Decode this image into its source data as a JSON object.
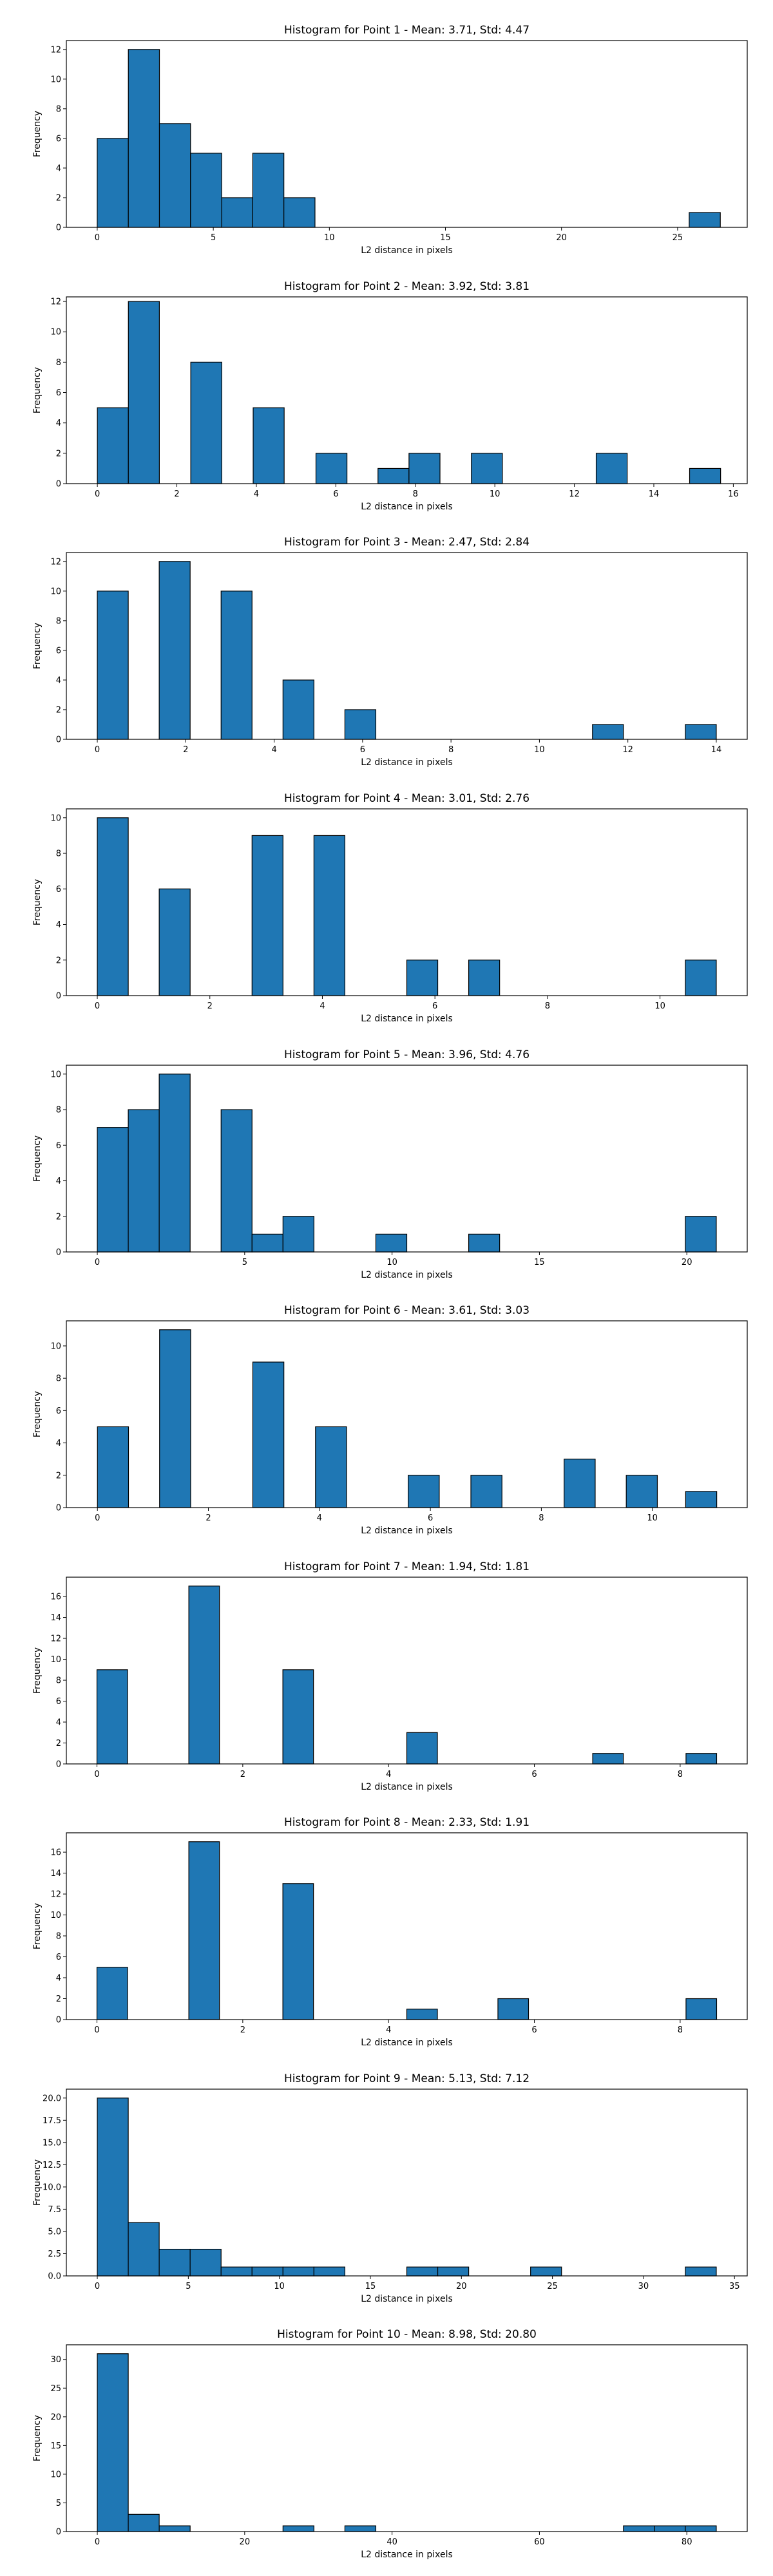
{
  "chart_data": [
    {
      "type": "bar",
      "title": "Histogram for Point 1 - Mean: 3.71, Std: 4.47",
      "xlabel": "L2 distance in pixels",
      "ylabel": "Frequency",
      "xlim": [
        -1.33,
        28.0
      ],
      "ylim": [
        0,
        12.6
      ],
      "xticks": [
        0,
        5,
        10,
        15,
        20,
        25
      ],
      "xtick_labels": [
        "0",
        "5",
        "10",
        "15",
        "20",
        "25"
      ],
      "yticks": [
        0,
        2,
        4,
        6,
        8,
        10,
        12
      ],
      "ytick_labels": [
        "0",
        "2",
        "4",
        "6",
        "8",
        "10",
        "12"
      ],
      "bin_width": 1.34,
      "bins": [
        {
          "x": 0,
          "count": 6
        },
        {
          "x": 1.34,
          "count": 12
        },
        {
          "x": 2.68,
          "count": 7
        },
        {
          "x": 4.02,
          "count": 5
        },
        {
          "x": 5.36,
          "count": 2
        },
        {
          "x": 6.7,
          "count": 5
        },
        {
          "x": 8.04,
          "count": 2
        },
        {
          "x": 25.5,
          "count": 1
        }
      ]
    },
    {
      "type": "bar",
      "title": "Histogram for Point 2 - Mean: 3.92, Std: 3.81",
      "xlabel": "L2 distance in pixels",
      "ylabel": "Frequency",
      "xlim": [
        -0.78,
        16.35
      ],
      "ylim": [
        0,
        12.3
      ],
      "xticks": [
        0,
        2,
        4,
        6,
        8,
        10,
        12,
        14,
        16
      ],
      "xtick_labels": [
        "0",
        "2",
        "4",
        "6",
        "8",
        "10",
        "12",
        "14",
        "16"
      ],
      "yticks": [
        0,
        2,
        4,
        6,
        8,
        10,
        12
      ],
      "ytick_labels": [
        "0",
        "2",
        "4",
        "6",
        "8",
        "10",
        "12"
      ],
      "bin_width": 0.78,
      "bins": [
        {
          "x": 0,
          "count": 5
        },
        {
          "x": 0.78,
          "count": 12
        },
        {
          "x": 2.35,
          "count": 8
        },
        {
          "x": 3.92,
          "count": 5
        },
        {
          "x": 5.5,
          "count": 2
        },
        {
          "x": 7.06,
          "count": 1
        },
        {
          "x": 7.84,
          "count": 2
        },
        {
          "x": 9.41,
          "count": 2
        },
        {
          "x": 12.55,
          "count": 2
        },
        {
          "x": 14.9,
          "count": 1
        }
      ]
    },
    {
      "type": "bar",
      "title": "Histogram for Point 3 - Mean: 2.47, Std: 2.84",
      "xlabel": "L2 distance in pixels",
      "ylabel": "Frequency",
      "xlim": [
        -0.7,
        14.7
      ],
      "ylim": [
        0,
        12.6
      ],
      "xticks": [
        0,
        2,
        4,
        6,
        8,
        10,
        12,
        14
      ],
      "xtick_labels": [
        "0",
        "2",
        "4",
        "6",
        "8",
        "10",
        "12",
        "14"
      ],
      "yticks": [
        0,
        2,
        4,
        6,
        8,
        10,
        12
      ],
      "ytick_labels": [
        "0",
        "2",
        "4",
        "6",
        "8",
        "10",
        "12"
      ],
      "bin_width": 0.7,
      "bins": [
        {
          "x": 0,
          "count": 10
        },
        {
          "x": 1.4,
          "count": 12
        },
        {
          "x": 2.8,
          "count": 10
        },
        {
          "x": 4.2,
          "count": 4
        },
        {
          "x": 5.6,
          "count": 2
        },
        {
          "x": 11.2,
          "count": 1
        },
        {
          "x": 13.3,
          "count": 1
        }
      ]
    },
    {
      "type": "bar",
      "title": "Histogram for Point 4 - Mean: 3.01, Std: 2.76",
      "xlabel": "L2 distance in pixels",
      "ylabel": "Frequency",
      "xlim": [
        -0.55,
        11.55
      ],
      "ylim": [
        0,
        10.5
      ],
      "xticks": [
        0,
        2,
        4,
        6,
        8,
        10
      ],
      "xtick_labels": [
        "0",
        "2",
        "4",
        "6",
        "8",
        "10"
      ],
      "yticks": [
        0,
        2,
        4,
        6,
        8,
        10
      ],
      "ytick_labels": [
        "0",
        "2",
        "4",
        "6",
        "8",
        "10"
      ],
      "bin_width": 0.55,
      "bins": [
        {
          "x": 0,
          "count": 10
        },
        {
          "x": 1.1,
          "count": 6
        },
        {
          "x": 2.75,
          "count": 9
        },
        {
          "x": 3.85,
          "count": 9
        },
        {
          "x": 5.5,
          "count": 2
        },
        {
          "x": 6.6,
          "count": 2
        },
        {
          "x": 10.45,
          "count": 2
        }
      ]
    },
    {
      "type": "bar",
      "title": "Histogram for Point 5 - Mean: 3.96, Std: 4.76",
      "xlabel": "L2 distance in pixels",
      "ylabel": "Frequency",
      "xlim": [
        -1.05,
        22.05
      ],
      "ylim": [
        0,
        10.5
      ],
      "xticks": [
        0,
        5,
        10,
        15,
        20
      ],
      "xtick_labels": [
        "0",
        "5",
        "10",
        "15",
        "20"
      ],
      "yticks": [
        0,
        2,
        4,
        6,
        8,
        10
      ],
      "ytick_labels": [
        "0",
        "2",
        "4",
        "6",
        "8",
        "10"
      ],
      "bin_width": 1.05,
      "bins": [
        {
          "x": 0,
          "count": 7
        },
        {
          "x": 1.05,
          "count": 8
        },
        {
          "x": 2.1,
          "count": 10
        },
        {
          "x": 4.2,
          "count": 8
        },
        {
          "x": 5.25,
          "count": 1
        },
        {
          "x": 6.3,
          "count": 2
        },
        {
          "x": 9.45,
          "count": 1
        },
        {
          "x": 12.6,
          "count": 1
        },
        {
          "x": 19.95,
          "count": 2
        }
      ]
    },
    {
      "type": "bar",
      "title": "Histogram for Point 6 - Mean: 3.61, Std: 3.03",
      "xlabel": "L2 distance in pixels",
      "ylabel": "Frequency",
      "xlim": [
        -0.56,
        11.71
      ],
      "ylim": [
        0,
        11.55
      ],
      "xticks": [
        0,
        2,
        4,
        6,
        8,
        10
      ],
      "xtick_labels": [
        "0",
        "2",
        "4",
        "6",
        "8",
        "10"
      ],
      "yticks": [
        0,
        2,
        4,
        6,
        8,
        10
      ],
      "ytick_labels": [
        "0",
        "2",
        "4",
        "6",
        "8",
        "10"
      ],
      "bin_width": 0.56,
      "bins": [
        {
          "x": 0,
          "count": 5
        },
        {
          "x": 1.12,
          "count": 11
        },
        {
          "x": 2.8,
          "count": 9
        },
        {
          "x": 3.93,
          "count": 5
        },
        {
          "x": 5.6,
          "count": 2
        },
        {
          "x": 6.73,
          "count": 2
        },
        {
          "x": 8.41,
          "count": 3
        },
        {
          "x": 9.53,
          "count": 2
        },
        {
          "x": 10.6,
          "count": 1
        }
      ]
    },
    {
      "type": "bar",
      "title": "Histogram for Point 7 - Mean: 1.94, Std: 1.81",
      "xlabel": "L2 distance in pixels",
      "ylabel": "Frequency",
      "xlim": [
        -0.42,
        8.92
      ],
      "ylim": [
        0,
        17.85
      ],
      "xticks": [
        0,
        2,
        4,
        6,
        8
      ],
      "xtick_labels": [
        "0",
        "2",
        "4",
        "6",
        "8"
      ],
      "yticks": [
        0,
        2,
        4,
        6,
        8,
        10,
        12,
        14,
        16
      ],
      "ytick_labels": [
        "0",
        "2",
        "4",
        "6",
        "8",
        "10",
        "12",
        "14",
        "16"
      ],
      "bin_width": 0.42,
      "bins": [
        {
          "x": 0,
          "count": 9
        },
        {
          "x": 1.26,
          "count": 17
        },
        {
          "x": 2.55,
          "count": 9
        },
        {
          "x": 4.25,
          "count": 3
        },
        {
          "x": 6.8,
          "count": 1
        },
        {
          "x": 8.08,
          "count": 1
        }
      ]
    },
    {
      "type": "bar",
      "title": "Histogram for Point 8 - Mean: 2.33, Std: 1.91",
      "xlabel": "L2 distance in pixels",
      "ylabel": "Frequency",
      "xlim": [
        -0.42,
        8.92
      ],
      "ylim": [
        0,
        17.85
      ],
      "xticks": [
        0,
        2,
        4,
        6,
        8
      ],
      "xtick_labels": [
        "0",
        "2",
        "4",
        "6",
        "8"
      ],
      "yticks": [
        0,
        2,
        4,
        6,
        8,
        10,
        12,
        14,
        16
      ],
      "ytick_labels": [
        "0",
        "2",
        "4",
        "6",
        "8",
        "10",
        "12",
        "14",
        "16"
      ],
      "bin_width": 0.42,
      "bins": [
        {
          "x": 0,
          "count": 5
        },
        {
          "x": 1.26,
          "count": 17
        },
        {
          "x": 2.55,
          "count": 13
        },
        {
          "x": 4.25,
          "count": 1
        },
        {
          "x": 5.5,
          "count": 2
        },
        {
          "x": 8.08,
          "count": 2
        }
      ]
    },
    {
      "type": "bar",
      "title": "Histogram for Point 9 - Mean: 5.13, Std: 7.12",
      "xlabel": "L2 distance in pixels",
      "ylabel": "Frequency",
      "xlim": [
        -1.7,
        35.7
      ],
      "ylim": [
        0,
        21.0
      ],
      "xticks": [
        0,
        5,
        10,
        15,
        20,
        25,
        30,
        35
      ],
      "xtick_labels": [
        "0",
        "5",
        "10",
        "15",
        "20",
        "25",
        "30",
        "35"
      ],
      "yticks": [
        0,
        2.5,
        5,
        7.5,
        10,
        12.5,
        15,
        17.5,
        20
      ],
      "ytick_labels": [
        "0.0",
        "2.5",
        "5.0",
        "7.5",
        "10.0",
        "12.5",
        "15.0",
        "17.5",
        "20.0"
      ],
      "bin_width": 1.7,
      "bins": [
        {
          "x": 0,
          "count": 20
        },
        {
          "x": 1.7,
          "count": 6
        },
        {
          "x": 3.4,
          "count": 3
        },
        {
          "x": 5.1,
          "count": 3
        },
        {
          "x": 6.8,
          "count": 1
        },
        {
          "x": 8.5,
          "count": 1
        },
        {
          "x": 10.2,
          "count": 1
        },
        {
          "x": 11.9,
          "count": 1
        },
        {
          "x": 17.0,
          "count": 1
        },
        {
          "x": 18.7,
          "count": 1
        },
        {
          "x": 23.8,
          "count": 1
        },
        {
          "x": 32.3,
          "count": 1
        }
      ]
    },
    {
      "type": "bar",
      "title": "Histogram for Point 10 - Mean: 8.98, Std: 20.80",
      "xlabel": "L2 distance in pixels",
      "ylabel": "Frequency",
      "xlim": [
        -4.2,
        88.2
      ],
      "ylim": [
        0,
        32.55
      ],
      "xticks": [
        0,
        20,
        40,
        60,
        80
      ],
      "xtick_labels": [
        "0",
        "20",
        "40",
        "60",
        "80"
      ],
      "yticks": [
        0,
        5,
        10,
        15,
        20,
        25,
        30
      ],
      "ytick_labels": [
        "0",
        "5",
        "10",
        "15",
        "20",
        "25",
        "30"
      ],
      "bin_width": 4.2,
      "bins": [
        {
          "x": 0,
          "count": 31
        },
        {
          "x": 4.2,
          "count": 3
        },
        {
          "x": 8.4,
          "count": 1
        },
        {
          "x": 25.2,
          "count": 1
        },
        {
          "x": 33.6,
          "count": 1
        },
        {
          "x": 71.4,
          "count": 1
        },
        {
          "x": 75.6,
          "count": 1
        },
        {
          "x": 79.8,
          "count": 1
        }
      ]
    }
  ]
}
